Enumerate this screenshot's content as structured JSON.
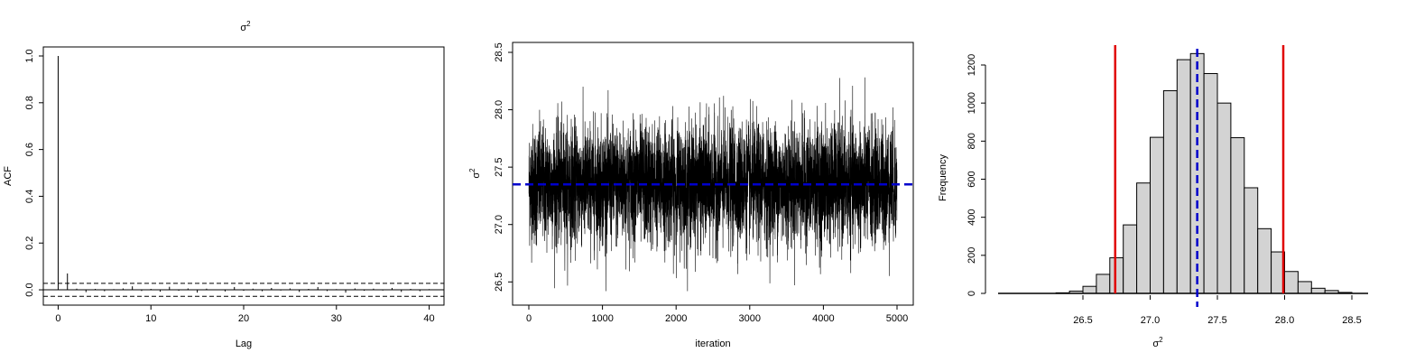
{
  "chart_data": [
    {
      "type": "bar",
      "subtype": "acf",
      "title": "σ",
      "title_sup": "2",
      "xlabel": "Lag",
      "ylabel": "ACF",
      "xlim": [
        0,
        40
      ],
      "ylim": [
        -0.05,
        1.0
      ],
      "x_ticks": [
        0,
        10,
        20,
        30,
        40
      ],
      "y_ticks": [
        0.0,
        0.2,
        0.4,
        0.6,
        0.8,
        1.0
      ],
      "x_tick_labels": [
        "0",
        "10",
        "20",
        "30",
        "40"
      ],
      "y_tick_labels": [
        "0.0",
        "0.2",
        "0.4",
        "0.6",
        "0.8",
        "1.0"
      ],
      "ci": 0.0277,
      "lags": [
        0,
        1,
        2,
        3,
        4,
        5,
        6,
        7,
        8,
        9,
        10,
        11,
        12,
        13,
        14,
        15,
        16,
        17,
        18,
        19,
        20,
        21,
        22,
        23,
        24,
        25,
        26,
        27,
        28,
        29,
        30,
        31,
        32,
        33,
        34,
        35,
        36,
        37,
        38,
        39,
        40
      ],
      "acf": [
        1.0,
        0.07,
        0.005,
        -0.01,
        0.004,
        -0.006,
        0.003,
        0.006,
        0.015,
        -0.005,
        0.004,
        -0.008,
        0.013,
        -0.004,
        0.006,
        -0.012,
        0.005,
        0.002,
        -0.007,
        0.012,
        -0.004,
        0.005,
        -0.006,
        0.008,
        -0.003,
        0.006,
        -0.009,
        0.004,
        0.012,
        -0.005,
        0.003,
        -0.012,
        0.006,
        -0.004,
        0.005,
        -0.003,
        0.008,
        -0.009,
        0.004,
        -0.006,
        0.003
      ]
    },
    {
      "type": "line",
      "subtype": "trace",
      "xlabel": "iteration",
      "ylabel": "σ",
      "ylabel_sup": "2",
      "xlim": [
        0,
        5000
      ],
      "ylim": [
        26.4,
        28.5
      ],
      "x_ticks": [
        0,
        1000,
        2000,
        3000,
        4000,
        5000
      ],
      "y_ticks": [
        26.5,
        27.0,
        27.5,
        28.0,
        28.5
      ],
      "x_tick_labels": [
        "0",
        "1000",
        "2000",
        "3000",
        "4000",
        "5000"
      ],
      "y_tick_labels": [
        "26.5",
        "27.0",
        "27.5",
        "28.0",
        "28.5"
      ],
      "n_iter": 5000,
      "mean": 27.35,
      "sd": 0.26,
      "min": 26.42,
      "max": 28.43,
      "mean_line": 27.35,
      "colors": {
        "trace": "#000000",
        "mean_line": "#0000cc"
      }
    },
    {
      "type": "bar",
      "subtype": "histogram",
      "xlabel": "σ",
      "xlabel_sup": "2",
      "ylabel": "Frequency",
      "xlim": [
        26.25,
        28.55
      ],
      "ylim": [
        0,
        1270
      ],
      "x_ticks": [
        26.5,
        27.0,
        27.5,
        28.0,
        28.5
      ],
      "y_ticks": [
        0,
        200,
        400,
        600,
        800,
        1000,
        1200
      ],
      "x_tick_labels": [
        "26.5",
        "27.0",
        "27.5",
        "28.0",
        "28.5"
      ],
      "y_tick_labels": [
        "0",
        "200",
        "400",
        "600",
        "800",
        "1000",
        "1200"
      ],
      "bin_width": 0.1,
      "bin_starts": [
        26.3,
        26.4,
        26.5,
        26.6,
        26.7,
        26.8,
        26.9,
        27.0,
        27.1,
        27.2,
        27.3,
        27.4,
        27.5,
        27.6,
        27.7,
        27.8,
        27.9,
        28.0,
        28.1,
        28.2,
        28.3,
        28.4
      ],
      "counts": [
        3,
        12,
        37,
        100,
        187,
        360,
        580,
        820,
        1065,
        1228,
        1260,
        1155,
        1000,
        818,
        555,
        340,
        218,
        115,
        62,
        27,
        15,
        5
      ],
      "mean_line": 27.35,
      "interval_lines": [
        26.74,
        27.99
      ],
      "colors": {
        "bar_fill": "#d3d3d3",
        "bar_stroke": "#000000",
        "mean_line": "#0000cc",
        "interval_lines": "#e00000"
      }
    }
  ]
}
